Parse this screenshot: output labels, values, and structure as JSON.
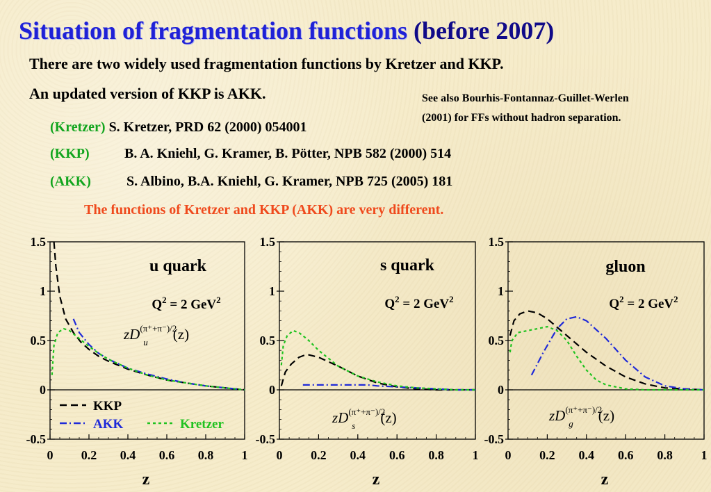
{
  "header": {
    "title_main": "Situation of fragmentation functions",
    "title_suffix": " (before 2007)",
    "line1": "There are two widely used fragmentation functions by Kretzer and KKP.",
    "line2": "An updated version of KKP is AKK.",
    "see_also_1": "See also Bourhis-Fontannaz-Guillet-Werlen",
    "see_also_2": "(2001) for FFs without hadron separation."
  },
  "references": [
    {
      "tag": "(Kretzer)",
      "cite": " S. Kretzer, PRD 62 (2000) 054001"
    },
    {
      "tag": "(KKP)",
      "cite": "B. A. Kniehl, G. Kramer, B. Pötter, NPB 582 (2000) 514"
    },
    {
      "tag": "(AKK)",
      "cite": "S. Albino, B.A. Kniehl, G. Kramer, NPB 725 (2005) 181"
    }
  ],
  "note": "The functions of Kretzer and KKP (AKK) are very different.",
  "colors": {
    "kkp": "#000000",
    "akk": "#1f2ad8",
    "kretzer": "#1fc21f",
    "tag": "#12a51e",
    "note": "#ef4a1d",
    "title": "#1f21d6"
  },
  "chart_data": [
    {
      "type": "line",
      "panel_label": "u quark",
      "q2_label": "Q² = 2 GeV²",
      "function_label": "zD_u^{(π⁺+π⁻)/2}(z)",
      "xlabel": "z",
      "xlim": [
        0,
        1
      ],
      "ylim": [
        -0.5,
        1.5
      ],
      "xticks": [
        "0",
        "0.2",
        "0.4",
        "0.6",
        "0.8",
        "1"
      ],
      "yticks": [
        "-0.5",
        "0",
        "0.5",
        "1",
        "1.5"
      ],
      "legend": [
        {
          "label": "KKP",
          "series": "KKP"
        },
        {
          "label": "AKK",
          "series": "AKK"
        },
        {
          "label": "Kretzer",
          "series": "Kretzer"
        }
      ],
      "series": [
        {
          "name": "KKP",
          "x": [
            0.02,
            0.03,
            0.05,
            0.08,
            0.12,
            0.16,
            0.2,
            0.25,
            0.3,
            0.4,
            0.5,
            0.6,
            0.7,
            0.8,
            0.9,
            1.0
          ],
          "y": [
            1.5,
            1.25,
            0.95,
            0.72,
            0.58,
            0.48,
            0.41,
            0.34,
            0.29,
            0.21,
            0.15,
            0.1,
            0.07,
            0.04,
            0.02,
            0.0
          ]
        },
        {
          "name": "AKK",
          "x": [
            0.12,
            0.15,
            0.2,
            0.25,
            0.3,
            0.4,
            0.5,
            0.6,
            0.7,
            0.8,
            0.9,
            1.0
          ],
          "y": [
            0.72,
            0.58,
            0.46,
            0.37,
            0.31,
            0.22,
            0.16,
            0.11,
            0.07,
            0.04,
            0.02,
            0.0
          ]
        },
        {
          "name": "Kretzer",
          "x": [
            0.01,
            0.02,
            0.04,
            0.07,
            0.1,
            0.15,
            0.2,
            0.25,
            0.3,
            0.4,
            0.5,
            0.6,
            0.7,
            0.8,
            0.9,
            1.0
          ],
          "y": [
            0.15,
            0.45,
            0.58,
            0.62,
            0.6,
            0.52,
            0.44,
            0.37,
            0.31,
            0.22,
            0.15,
            0.1,
            0.07,
            0.04,
            0.02,
            0.0
          ]
        }
      ]
    },
    {
      "type": "line",
      "panel_label": "s quark",
      "q2_label": "Q² = 2 GeV²",
      "function_label": "zD_s^{(π⁺+π⁻)/2}(z)",
      "xlabel": "z",
      "xlim": [
        0,
        1
      ],
      "ylim": [
        -0.5,
        1.5
      ],
      "xticks": [
        "0",
        "0.2",
        "0.4",
        "0.6",
        "0.8",
        "1"
      ],
      "yticks": [
        "-0.5",
        "0",
        "0.5",
        "1",
        "1.5"
      ],
      "series": [
        {
          "name": "KKP",
          "x": [
            0.01,
            0.03,
            0.06,
            0.1,
            0.14,
            0.2,
            0.3,
            0.4,
            0.5,
            0.6,
            0.7,
            0.8,
            0.9,
            1.0
          ],
          "y": [
            0.04,
            0.18,
            0.26,
            0.33,
            0.36,
            0.33,
            0.24,
            0.14,
            0.07,
            0.03,
            0.01,
            0.0,
            0.0,
            0.0
          ]
        },
        {
          "name": "AKK",
          "x": [
            0.12,
            0.2,
            0.3,
            0.4,
            0.45,
            0.5,
            0.6,
            0.7,
            0.8,
            0.9,
            1.0
          ],
          "y": [
            0.05,
            0.05,
            0.05,
            0.05,
            0.05,
            0.04,
            0.03,
            0.02,
            0.01,
            0.0,
            0.0
          ]
        },
        {
          "name": "Kretzer",
          "x": [
            0.01,
            0.02,
            0.04,
            0.07,
            0.1,
            0.15,
            0.2,
            0.3,
            0.4,
            0.5,
            0.6,
            0.7,
            0.8,
            0.9,
            1.0
          ],
          "y": [
            0.25,
            0.45,
            0.55,
            0.6,
            0.58,
            0.5,
            0.4,
            0.24,
            0.14,
            0.08,
            0.04,
            0.02,
            0.01,
            0.0,
            0.0
          ]
        }
      ]
    },
    {
      "type": "line",
      "panel_label": "gluon",
      "q2_label": "Q² = 2 GeV²",
      "function_label": "zD_g^{(π⁺+π⁻)/2}(z)",
      "xlabel": "z",
      "xlim": [
        0,
        1
      ],
      "ylim": [
        -0.5,
        1.5
      ],
      "xticks": [
        "0",
        "0.2",
        "0.4",
        "0.6",
        "0.8",
        "1"
      ],
      "yticks": [
        "-0.5",
        "0",
        "0.5",
        "1",
        "1.5"
      ],
      "series": [
        {
          "name": "KKP",
          "x": [
            0.01,
            0.03,
            0.06,
            0.1,
            0.15,
            0.2,
            0.3,
            0.4,
            0.5,
            0.6,
            0.7,
            0.8,
            0.9,
            1.0
          ],
          "y": [
            0.55,
            0.7,
            0.77,
            0.8,
            0.78,
            0.72,
            0.55,
            0.38,
            0.24,
            0.13,
            0.06,
            0.02,
            0.01,
            0.0
          ]
        },
        {
          "name": "AKK",
          "x": [
            0.12,
            0.18,
            0.25,
            0.3,
            0.35,
            0.4,
            0.5,
            0.6,
            0.7,
            0.8,
            0.9,
            1.0
          ],
          "y": [
            0.15,
            0.38,
            0.62,
            0.72,
            0.74,
            0.7,
            0.52,
            0.3,
            0.13,
            0.04,
            0.01,
            0.0
          ]
        },
        {
          "name": "Kretzer",
          "x": [
            0.01,
            0.02,
            0.05,
            0.1,
            0.15,
            0.2,
            0.25,
            0.3,
            0.35,
            0.4,
            0.45,
            0.5,
            0.6,
            0.7,
            0.8,
            0.9,
            1.0
          ],
          "y": [
            0.38,
            0.5,
            0.58,
            0.6,
            0.62,
            0.64,
            0.6,
            0.5,
            0.34,
            0.2,
            0.1,
            0.05,
            0.01,
            0.0,
            0.0,
            0.0,
            0.0
          ]
        }
      ]
    }
  ]
}
